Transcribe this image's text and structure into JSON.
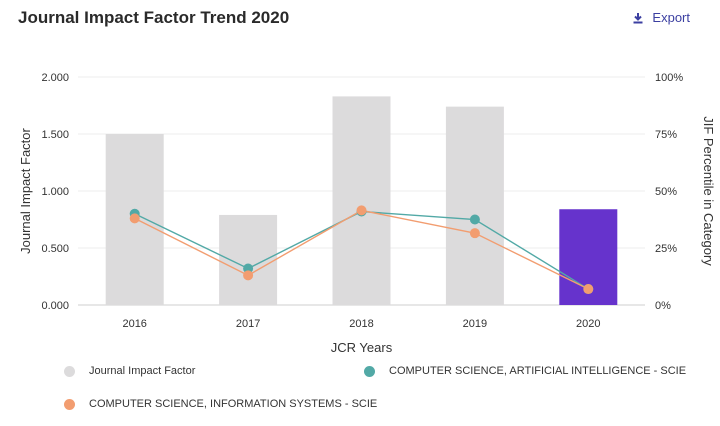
{
  "header": {
    "title": "Journal Impact Factor Trend 2020",
    "export_label": "Export",
    "export_icon": "download-icon"
  },
  "colors": {
    "bar_default": "#dcdbdc",
    "bar_highlight": "#6633cc",
    "series_ai": "#52a9a6",
    "series_is": "#f29d70",
    "accent": "#3b3fa1"
  },
  "chart_data": {
    "type": "bar",
    "categories": [
      "2016",
      "2017",
      "2018",
      "2019",
      "2020"
    ],
    "xlabel": "JCR Years",
    "ylabel": "Journal Impact Factor",
    "y2label": "JIF Percentile in Category",
    "ylim": [
      0,
      2.0
    ],
    "y2lim": [
      0,
      100
    ],
    "yticks": [
      "0.000",
      "0.500",
      "1.000",
      "1.500",
      "2.000"
    ],
    "y2ticks": [
      "0%",
      "25%",
      "50%",
      "75%",
      "100%"
    ],
    "bars": {
      "name": "Journal Impact Factor",
      "values": [
        1.5,
        0.79,
        1.83,
        1.74,
        0.84
      ],
      "highlight_index": 4
    },
    "series": [
      {
        "name": "COMPUTER SCIENCE, ARTIFICIAL INTELLIGENCE - SCIE",
        "axis": "right",
        "values": [
          40,
          16,
          41,
          37.5,
          7
        ]
      },
      {
        "name": "COMPUTER SCIENCE, INFORMATION SYSTEMS - SCIE",
        "axis": "right",
        "values": [
          38,
          13,
          41.5,
          31.5,
          7
        ]
      }
    ],
    "grid": true,
    "legend_position": "bottom-left"
  }
}
